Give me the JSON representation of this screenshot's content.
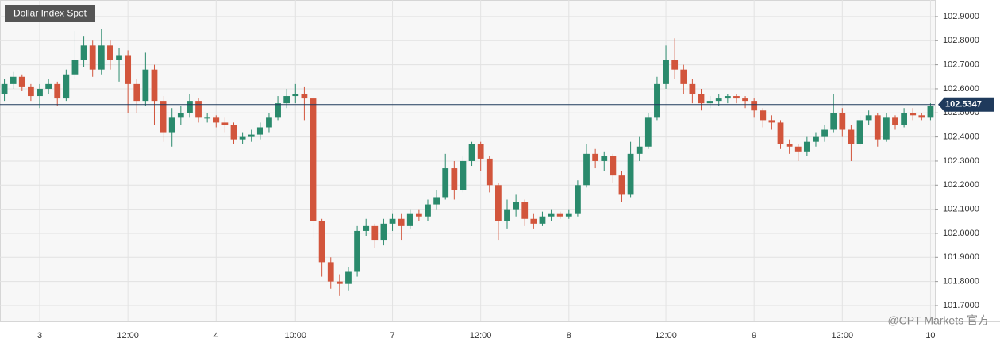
{
  "chart_data": {
    "type": "candlestick",
    "title": "Dollar Index Spot",
    "categories": [
      null,
      null,
      null,
      null,
      "3",
      null,
      null,
      null,
      null,
      null,
      null,
      null,
      null,
      null,
      "12:00",
      null,
      null,
      null,
      null,
      null,
      null,
      null,
      null,
      null,
      "4",
      null,
      null,
      null,
      null,
      null,
      null,
      null,
      null,
      "10:00",
      null,
      null,
      null,
      null,
      null,
      null,
      null,
      null,
      null,
      null,
      "7",
      null,
      null,
      null,
      null,
      null,
      null,
      null,
      null,
      null,
      "12:00",
      null,
      null,
      null,
      null,
      null,
      null,
      null,
      null,
      null,
      "8",
      null,
      null,
      null,
      null,
      null,
      null,
      null,
      null,
      null,
      null,
      "12:00",
      null,
      null,
      null,
      null,
      null,
      null,
      null,
      null,
      null,
      "9",
      null,
      null,
      null,
      null,
      null,
      null,
      null,
      null,
      null,
      "12:00",
      null,
      null,
      null,
      null,
      null,
      null,
      null,
      null,
      null,
      "10"
    ],
    "open": [
      102.58,
      102.62,
      102.65,
      102.61,
      102.57,
      102.6,
      102.62,
      102.56,
      102.66,
      102.72,
      102.78,
      102.68,
      102.78,
      102.72,
      102.74,
      102.62,
      102.55,
      102.68,
      102.55,
      102.42,
      102.48,
      102.5,
      102.55,
      102.48,
      102.48,
      102.46,
      102.45,
      102.39,
      102.4,
      102.41,
      102.44,
      102.48,
      102.54,
      102.57,
      102.58,
      102.56,
      102.05,
      101.88,
      101.8,
      101.79,
      101.84,
      102.01,
      102.03,
      101.97,
      102.04,
      102.06,
      102.03,
      102.08,
      102.07,
      102.12,
      102.15,
      102.27,
      102.18,
      102.3,
      102.37,
      102.31,
      102.2,
      102.05,
      102.1,
      102.13,
      102.06,
      102.04,
      102.07,
      102.08,
      102.07,
      102.08,
      102.2,
      102.33,
      102.3,
      102.32,
      102.24,
      102.16,
      102.33,
      102.36,
      102.48,
      102.62,
      102.72,
      102.68,
      102.62,
      102.58,
      102.54,
      102.55,
      102.56,
      102.57,
      102.56,
      102.55,
      102.51,
      102.47,
      102.46,
      102.37,
      102.36,
      102.34,
      102.38,
      102.4,
      102.43,
      102.5,
      102.43,
      102.37,
      102.47,
      102.49,
      102.39,
      102.48,
      102.45,
      102.5,
      102.49,
      102.48
    ],
    "high": [
      102.64,
      102.67,
      102.66,
      102.62,
      102.62,
      102.64,
      102.63,
      102.68,
      102.84,
      102.82,
      102.8,
      102.85,
      102.8,
      102.77,
      102.76,
      102.64,
      102.75,
      102.7,
      102.57,
      102.52,
      102.53,
      102.58,
      102.56,
      102.5,
      102.49,
      102.48,
      102.46,
      102.42,
      102.43,
      102.46,
      102.5,
      102.57,
      102.6,
      102.62,
      102.61,
      102.57,
      102.06,
      101.9,
      101.83,
      101.86,
      102.03,
      102.06,
      102.04,
      102.06,
      102.08,
      102.08,
      102.1,
      102.1,
      102.14,
      102.18,
      102.33,
      102.3,
      102.32,
      102.38,
      102.38,
      102.32,
      102.21,
      102.14,
      102.16,
      102.14,
      102.08,
      102.09,
      102.1,
      102.09,
      102.1,
      102.22,
      102.37,
      102.35,
      102.34,
      102.33,
      102.26,
      102.38,
      102.4,
      102.5,
      102.65,
      102.78,
      102.81,
      102.7,
      102.64,
      102.6,
      102.57,
      102.58,
      102.58,
      102.58,
      102.57,
      102.56,
      102.52,
      102.49,
      102.47,
      102.39,
      102.37,
      102.4,
      102.42,
      102.45,
      102.58,
      102.52,
      102.45,
      102.49,
      102.51,
      102.5,
      102.5,
      102.49,
      102.52,
      102.52,
      102.5,
      102.54
    ],
    "low": [
      102.55,
      102.6,
      102.59,
      102.55,
      102.52,
      102.58,
      102.53,
      102.55,
      102.64,
      102.69,
      102.65,
      102.66,
      102.68,
      102.63,
      102.5,
      102.5,
      102.53,
      102.45,
      102.38,
      102.36,
      102.45,
      102.48,
      102.46,
      102.46,
      102.44,
      102.42,
      102.37,
      102.37,
      102.38,
      102.39,
      102.42,
      102.47,
      102.52,
      102.54,
      102.47,
      101.98,
      101.82,
      101.77,
      101.74,
      101.76,
      101.82,
      101.99,
      101.94,
      101.95,
      102.01,
      101.97,
      102.02,
      102.05,
      102.05,
      102.1,
      102.14,
      102.14,
      102.17,
      102.28,
      102.26,
      102.17,
      101.97,
      102.02,
      102.07,
      102.03,
      102.02,
      102.03,
      102.05,
      102.06,
      102.06,
      102.07,
      102.19,
      102.27,
      102.26,
      102.21,
      102.13,
      102.15,
      102.3,
      102.35,
      102.47,
      102.6,
      102.64,
      102.58,
      102.54,
      102.51,
      102.52,
      102.53,
      102.54,
      102.54,
      102.52,
      102.48,
      102.44,
      102.43,
      102.35,
      102.33,
      102.3,
      102.32,
      102.36,
      102.38,
      102.42,
      102.4,
      102.3,
      102.36,
      102.45,
      102.36,
      102.38,
      102.43,
      102.44,
      102.47,
      102.47,
      102.47
    ],
    "close": [
      102.62,
      102.65,
      102.61,
      102.57,
      102.6,
      102.62,
      102.56,
      102.66,
      102.72,
      102.78,
      102.68,
      102.78,
      102.72,
      102.74,
      102.62,
      102.55,
      102.68,
      102.55,
      102.42,
      102.48,
      102.5,
      102.55,
      102.48,
      102.48,
      102.46,
      102.45,
      102.39,
      102.4,
      102.41,
      102.44,
      102.48,
      102.54,
      102.57,
      102.58,
      102.56,
      102.05,
      101.88,
      101.8,
      101.79,
      101.84,
      102.01,
      102.03,
      101.97,
      102.04,
      102.06,
      102.03,
      102.08,
      102.07,
      102.12,
      102.15,
      102.27,
      102.18,
      102.3,
      102.37,
      102.31,
      102.2,
      102.05,
      102.1,
      102.13,
      102.06,
      102.04,
      102.07,
      102.08,
      102.07,
      102.08,
      102.2,
      102.33,
      102.3,
      102.32,
      102.24,
      102.16,
      102.33,
      102.36,
      102.48,
      102.62,
      102.72,
      102.68,
      102.62,
      102.58,
      102.54,
      102.55,
      102.56,
      102.57,
      102.56,
      102.55,
      102.51,
      102.47,
      102.46,
      102.37,
      102.36,
      102.34,
      102.38,
      102.4,
      102.43,
      102.5,
      102.43,
      102.37,
      102.47,
      102.49,
      102.39,
      102.48,
      102.45,
      102.5,
      102.49,
      102.48,
      102.53
    ],
    "up_color": "#2a8a6c",
    "down_color": "#d2553c",
    "ylim": [
      101.634,
      102.969
    ],
    "yticks": [
      {
        "value": 101.7,
        "label": "101.7000"
      },
      {
        "value": 101.8,
        "label": "101.8000"
      },
      {
        "value": 101.9,
        "label": "101.9000"
      },
      {
        "value": 102.0,
        "label": "102.0000"
      },
      {
        "value": 102.1,
        "label": "102.1000"
      },
      {
        "value": 102.2,
        "label": "102.2000"
      },
      {
        "value": 102.3,
        "label": "102.3000"
      },
      {
        "value": 102.4,
        "label": "102.4000"
      },
      {
        "value": 102.5,
        "label": "102.5000"
      },
      {
        "value": 102.6,
        "label": "102.6000"
      },
      {
        "value": 102.7,
        "label": "102.7000"
      },
      {
        "value": 102.8,
        "label": "102.8000"
      },
      {
        "value": 102.9,
        "label": "102.9000"
      }
    ],
    "grid": true,
    "last_price": 102.5347,
    "last_price_color": "#1f3a5c",
    "watermark": "@CPT Markets 官方"
  }
}
